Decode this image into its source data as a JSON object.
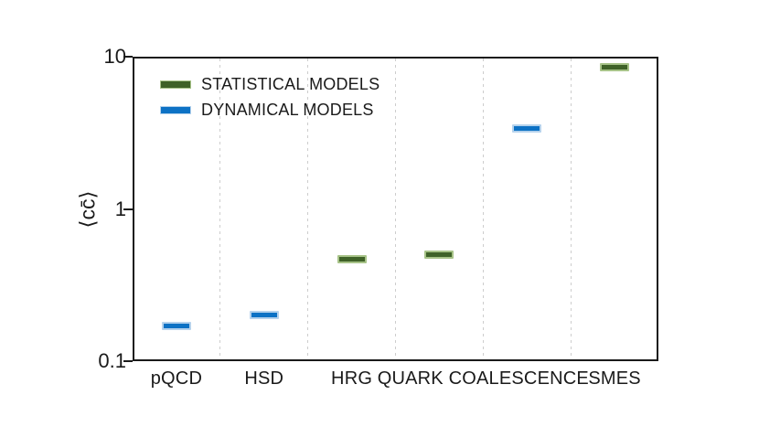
{
  "figure": {
    "background": "#ffffff",
    "axis_color": "#1a1a1a",
    "grid_color": "#cdcdcd"
  },
  "chart_data": {
    "type": "scatter",
    "title": "",
    "ylabel": "⟨cc̄⟩",
    "xlabel": "",
    "yscale": "log",
    "ylim": [
      0.1,
      10
    ],
    "yticks": [
      {
        "value": 10,
        "label": "10"
      },
      {
        "value": 1,
        "label": "1"
      },
      {
        "value": 0.1,
        "label": "0.1"
      }
    ],
    "grid": "vertical-dashed-between-slots",
    "slots": 6,
    "legend_position": "inside-top-left",
    "categories": [
      {
        "label": "pQCD",
        "slot_center": 0
      },
      {
        "label": "HSD",
        "slot_center": 1
      },
      {
        "label": "HRG",
        "slot_center": 2
      },
      {
        "label": "QUARK COALESCENCE",
        "slot_center": 3.5
      },
      {
        "label": "SMES",
        "slot_center": 5
      }
    ],
    "series": [
      {
        "name": "STATISTICAL MODELS",
        "fill": "#3f6228",
        "edge": "#a7c388",
        "points": [
          {
            "category": "HRG",
            "slot": 2,
            "value": 0.47
          },
          {
            "category": "QUARK COALESCENCE",
            "slot": 3,
            "value": 0.5
          },
          {
            "category": "SMES",
            "slot": 5,
            "value": 8.5
          }
        ]
      },
      {
        "name": "DYNAMICAL MODELS",
        "fill": "#0d72c5",
        "edge": "#b5d2ec",
        "points": [
          {
            "category": "pQCD",
            "slot": 0,
            "value": 0.17
          },
          {
            "category": "HSD",
            "slot": 1,
            "value": 0.2
          },
          {
            "category": "QUARK COALESCENCE",
            "slot": 4,
            "value": 3.4
          }
        ]
      }
    ]
  }
}
